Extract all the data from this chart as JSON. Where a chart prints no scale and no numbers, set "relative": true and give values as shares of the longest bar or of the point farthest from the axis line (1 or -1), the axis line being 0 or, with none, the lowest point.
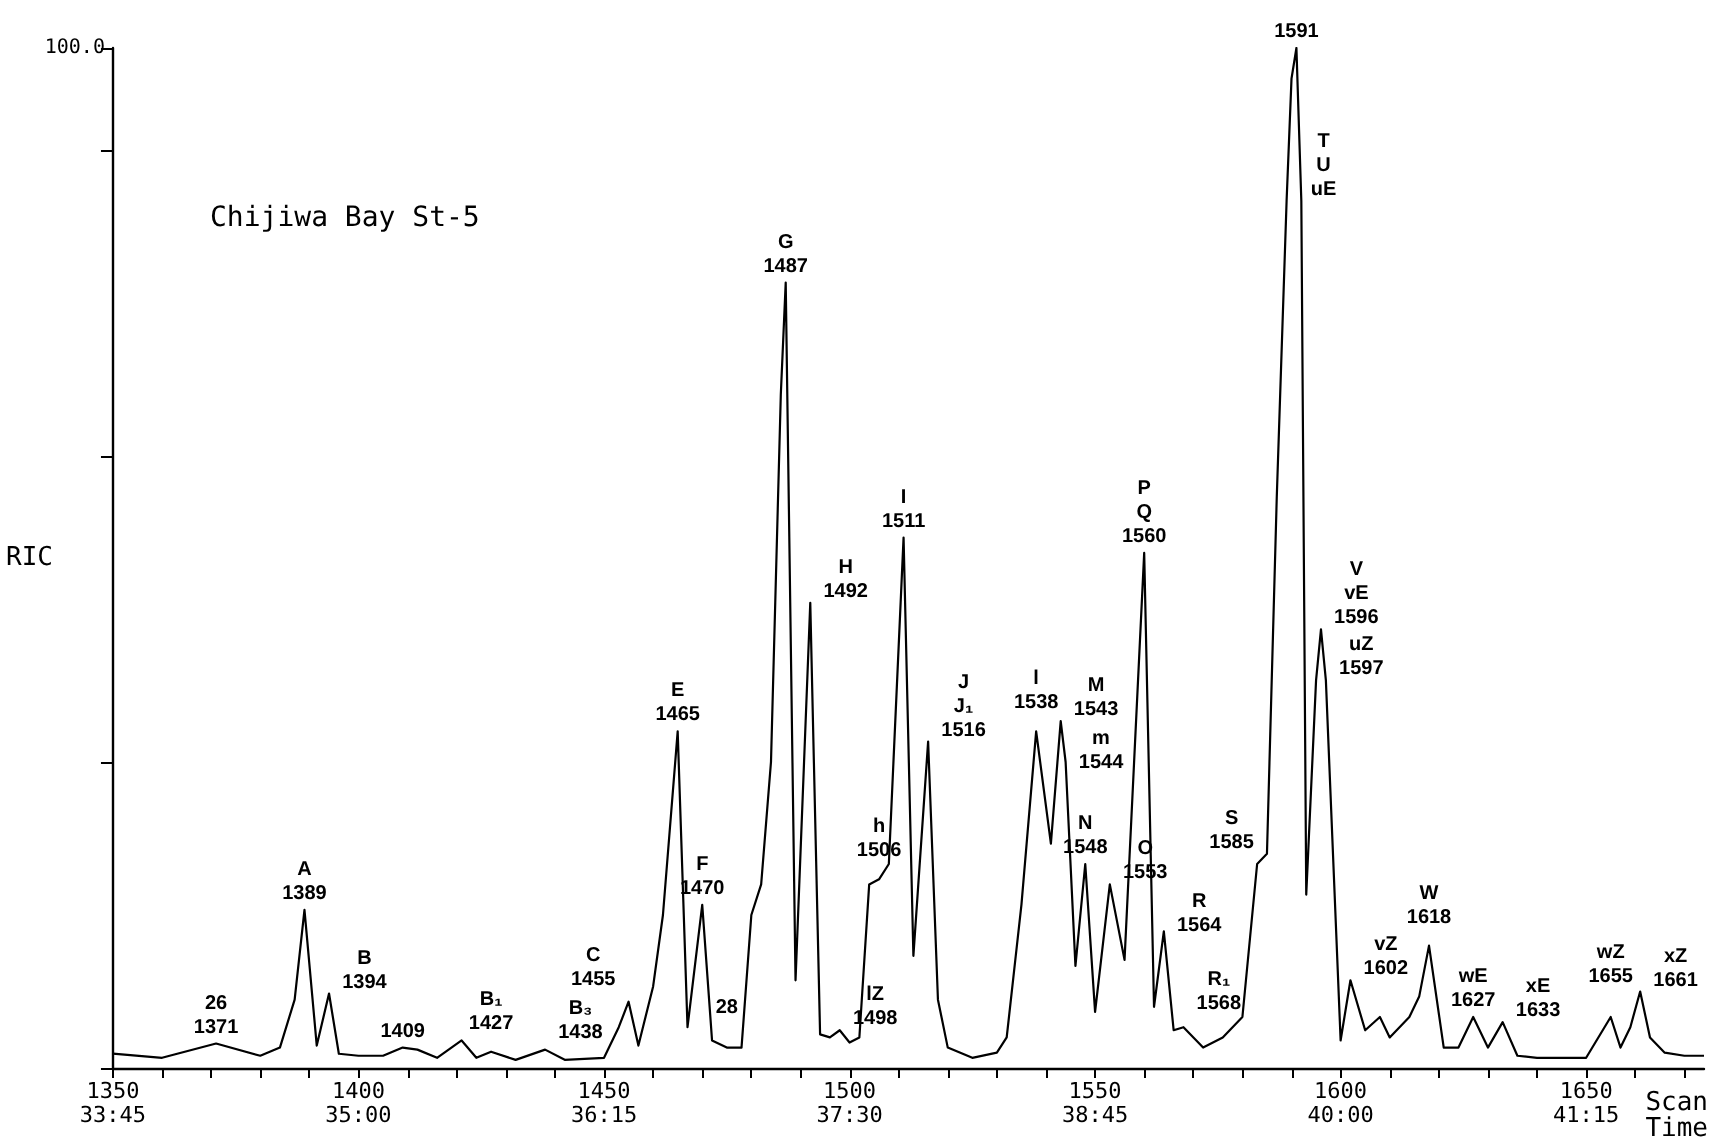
{
  "chart_data": {
    "type": "line",
    "title": "Chijiwa Bay St-5",
    "xlabel": "Scan",
    "x2label": "Time",
    "ylabel": "RIC",
    "relative": true,
    "marker": "none",
    "xlim": [
      1350,
      1674
    ],
    "xticks": [
      1350,
      {
        "value": 1360,
        "label": null
      },
      {
        "value": 1370,
        "label": null
      },
      {
        "value": 1380,
        "label": null
      },
      {
        "value": 1390,
        "label": null
      },
      1400,
      {
        "value": 1410,
        "label": null
      },
      {
        "value": 1420,
        "label": null
      },
      {
        "value": 1430,
        "label": null
      },
      {
        "value": 1440,
        "label": null
      },
      1450,
      {
        "value": 1460,
        "label": null
      },
      {
        "value": 1470,
        "label": null
      },
      {
        "value": 1480,
        "label": null
      },
      {
        "value": 1490,
        "label": null
      },
      1500,
      {
        "value": 1510,
        "label": null
      },
      {
        "value": 1520,
        "label": null
      },
      {
        "value": 1530,
        "label": null
      },
      {
        "value": 1540,
        "label": null
      },
      1550,
      {
        "value": 1560,
        "label": null
      },
      {
        "value": 1570,
        "label": null
      },
      {
        "value": 1580,
        "label": null
      },
      {
        "value": 1590,
        "label": null
      },
      1600,
      {
        "value": 1610,
        "label": null
      },
      {
        "value": 1620,
        "label": null
      },
      {
        "value": 1630,
        "label": null
      },
      {
        "value": 1640,
        "label": null
      },
      1650,
      {
        "value": 1660,
        "label": null
      },
      {
        "value": 1670,
        "label": null
      }
    ],
    "x2lim": [
      33.75,
      41.85
    ],
    "x2ticks": [
      {
        "value": 33.75,
        "label": "33:45"
      },
      {
        "value": 35,
        "label": "35:00"
      },
      {
        "value": 36.25,
        "label": "36:15"
      },
      {
        "value": 37.5,
        "label": "37:30"
      },
      {
        "value": 38.75,
        "label": "38:45"
      },
      {
        "value": 40,
        "label": "40:00"
      },
      {
        "value": 41.25,
        "label": "41:15"
      }
    ],
    "series": [
      {
        "color": "#000000",
        "x": [
          1350,
          1360,
          1371,
          1380,
          1384,
          1387,
          1389,
          1391.5,
          1394,
          1396,
          1400,
          1405,
          1409,
          1412,
          1416,
          1421,
          1424,
          1427,
          1432,
          1438,
          1442,
          1450,
          1453,
          1455,
          1457,
          1460,
          1462,
          1465,
          1467,
          1470,
          1472,
          1475,
          1478,
          1480,
          1482,
          1484,
          1486,
          1487,
          1489,
          1492,
          1494,
          1496,
          1498,
          1500,
          1502,
          1504,
          1506,
          1508,
          1511,
          1513,
          1516,
          1518,
          1520,
          1525,
          1530,
          1532,
          1535,
          1538,
          1541,
          1543,
          1544,
          1546,
          1548,
          1550,
          1553,
          1556,
          1560,
          1562,
          1564,
          1566,
          1568,
          1572,
          1576,
          1580,
          1583,
          1585,
          1587,
          1589,
          1590,
          1591,
          1592,
          1593,
          1595,
          1596,
          1597,
          1600,
          1602,
          1605,
          1608,
          1610,
          1614,
          1616,
          1618,
          1621,
          1624,
          1627,
          1630,
          1633,
          1636,
          1640,
          1645,
          1650,
          1655,
          1657,
          1659,
          1661,
          1663,
          1666,
          1670,
          1674
        ],
        "values": [
          0.014,
          0.01,
          0.024,
          0.012,
          0.02,
          0.067,
          0.155,
          0.022,
          0.073,
          0.014,
          0.012,
          0.012,
          0.02,
          0.018,
          0.01,
          0.027,
          0.01,
          0.016,
          0.008,
          0.018,
          0.008,
          0.01,
          0.04,
          0.065,
          0.022,
          0.08,
          0.15,
          0.33,
          0.04,
          0.16,
          0.027,
          0.02,
          0.02,
          0.15,
          0.18,
          0.3,
          0.66,
          0.77,
          0.086,
          0.456,
          0.033,
          0.03,
          0.037,
          0.025,
          0.03,
          0.18,
          0.185,
          0.2,
          0.52,
          0.11,
          0.32,
          0.067,
          0.02,
          0.01,
          0.015,
          0.03,
          0.16,
          0.33,
          0.22,
          0.34,
          0.3,
          0.1,
          0.2,
          0.055,
          0.18,
          0.106,
          0.505,
          0.06,
          0.134,
          0.037,
          0.04,
          0.02,
          0.03,
          0.05,
          0.2,
          0.21,
          0.56,
          0.85,
          0.97,
          1,
          0.85,
          0.17,
          0.38,
          0.43,
          0.38,
          0.027,
          0.086,
          0.037,
          0.05,
          0.03,
          0.05,
          0.07,
          0.12,
          0.02,
          0.02,
          0.05,
          0.02,
          0.045,
          0.012,
          0.01,
          0.01,
          0.01,
          0.05,
          0.02,
          0.04,
          0.075,
          0.03,
          0.015,
          0.012,
          0.012
        ]
      }
    ],
    "annotations": [
      "100.0",
      {
        "text": "26\n1371",
        "x": 1371,
        "y": 0.024
      },
      {
        "text": "A\n1389",
        "x": 1389,
        "y": 0.155
      },
      {
        "text": "B\n1394",
        "x": 1394,
        "y": 0.073
      },
      {
        "text": "1409",
        "x": 1409,
        "y": 0.02
      },
      {
        "text": "B₁\n1427",
        "x": 1427,
        "y": 0.016
      },
      {
        "text": "B₃\n1438",
        "x": 1438,
        "y": 0.018
      },
      {
        "text": "C\n1455",
        "x": 1455,
        "y": 0.065
      },
      {
        "text": "E\n1465",
        "x": 1465,
        "y": 0.33
      },
      {
        "text": "F\n1470",
        "x": 1470,
        "y": 0.16
      },
      {
        "text": "28",
        "x": 1475,
        "y": 0.02
      },
      {
        "text": "G\n1487",
        "x": 1487,
        "y": 0.77
      },
      {
        "text": "H\n1492",
        "x": 1492,
        "y": 0.456
      },
      {
        "text": "lZ\n1498",
        "x": 1498,
        "y": 0.037
      },
      {
        "text": "h\n1506",
        "x": 1506,
        "y": 0.185
      },
      {
        "text": "I\n1511",
        "x": 1511,
        "y": 0.52
      },
      {
        "text": "J\nJ₁\n1516",
        "x": 1516,
        "y": 0.32
      },
      {
        "text": "l\n1538",
        "x": 1538,
        "y": 0.33
      },
      {
        "text": "M\n1543",
        "x": 1543,
        "y": 0.34
      },
      {
        "text": "m\n1544",
        "x": 1544,
        "y": 0.3
      },
      {
        "text": "N\n1548",
        "x": 1548,
        "y": 0.2
      },
      {
        "text": "O\n1553",
        "x": 1553,
        "y": 0.18
      },
      {
        "text": "P\nQ\n1560",
        "x": 1560,
        "y": 0.505
      },
      {
        "text": "R\n1564",
        "x": 1564,
        "y": 0.134
      },
      {
        "text": "R₁\n1568",
        "x": 1568,
        "y": 0.04
      },
      {
        "text": "S\n1585",
        "x": 1585,
        "y": 0.21
      },
      {
        "text": "1591",
        "x": 1591,
        "y": 1
      },
      {
        "text": "T\nU\nuE",
        "x": 1592,
        "y": 0.85
      },
      {
        "text": "V\nvE\n1596",
        "x": 1596,
        "y": 0.43
      },
      {
        "text": "uZ\n1597",
        "x": 1597,
        "y": 0.38
      },
      {
        "text": "vZ\n1602",
        "x": 1602,
        "y": 0.086
      },
      {
        "text": "W\n1618",
        "x": 1618,
        "y": 0.12
      },
      {
        "text": "wE\n1627",
        "x": 1627,
        "y": 0.05
      },
      {
        "text": "xE\n1633",
        "x": 1633,
        "y": 0.045
      },
      {
        "text": "wZ\n1655",
        "x": 1655,
        "y": 0.05
      },
      {
        "text": "xZ\n1661",
        "x": 1661,
        "y": 0.075
      }
    ]
  }
}
